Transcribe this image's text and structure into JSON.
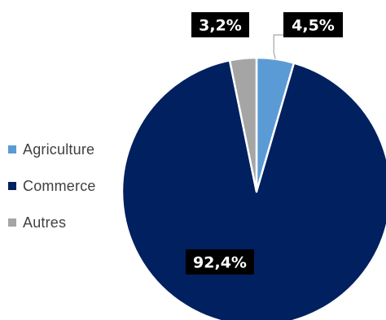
{
  "chart_data": {
    "type": "pie",
    "categories": [
      "Agriculture",
      "Commerce",
      "Autres"
    ],
    "values": [
      4.5,
      92.4,
      3.2
    ],
    "data_labels": [
      "4,5%",
      "92,4%",
      "3,2%"
    ],
    "colors": [
      "#5b9bd5",
      "#002060",
      "#a5a5a5"
    ],
    "legend_position": "left",
    "title": ""
  }
}
